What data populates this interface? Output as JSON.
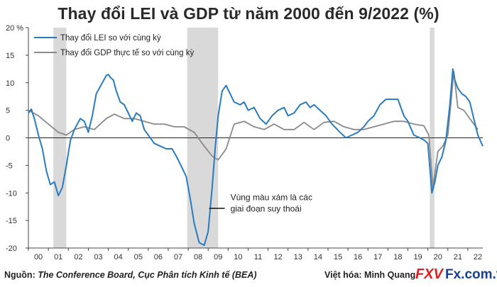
{
  "title": "Thay đổi LEI và GDP từ năm 2000 đến 9/2022 (%)",
  "chart_data": {
    "type": "line",
    "title": "Thay đổi LEI và GDP từ năm 2000 đến 9/2022 (%)",
    "ylabel_unit": "%",
    "ylim": [
      -20,
      20
    ],
    "yticks": [
      20,
      15,
      10,
      5,
      0,
      -5,
      -10,
      -15,
      -20
    ],
    "ytick_labels": [
      "20 %",
      "15",
      "10",
      "5",
      "0",
      "-5",
      "-10",
      "-15",
      "-20"
    ],
    "xlim": [
      2000.0,
      2022.75
    ],
    "xtick_labels": [
      "00",
      "01",
      "02",
      "03",
      "04",
      "05",
      "06",
      "07",
      "08",
      "09",
      "10",
      "11",
      "12",
      "13",
      "14",
      "15",
      "16",
      "17",
      "18",
      "19",
      "20",
      "21",
      "22"
    ],
    "grid": false,
    "legend_position": "top-left",
    "recessions": [
      [
        2001.25,
        2001.9
      ],
      [
        2007.95,
        2009.5
      ],
      [
        2020.1,
        2020.33
      ]
    ],
    "series": [
      {
        "name": "Thay đổi LEI so với cùng kỳ",
        "color": "#2a7bbf",
        "x": [
          2000.0,
          2000.15,
          2000.3,
          2000.5,
          2000.7,
          2000.9,
          2001.1,
          2001.3,
          2001.5,
          2001.7,
          2001.9,
          2002.1,
          2002.3,
          2002.6,
          2002.8,
          2003.0,
          2003.2,
          2003.4,
          2003.7,
          2003.9,
          2004.0,
          2004.1,
          2004.25,
          2004.4,
          2004.6,
          2004.8,
          2005.0,
          2005.2,
          2005.4,
          2005.6,
          2005.8,
          2006.0,
          2006.3,
          2006.6,
          2006.9,
          2007.2,
          2007.5,
          2007.9,
          2008.1,
          2008.3,
          2008.55,
          2008.8,
          2009.0,
          2009.2,
          2009.35,
          2009.5,
          2009.7,
          2009.9,
          2010.1,
          2010.3,
          2010.6,
          2010.8,
          2011.0,
          2011.3,
          2011.6,
          2011.9,
          2012.2,
          2012.5,
          2012.8,
          2013.0,
          2013.3,
          2013.6,
          2013.9,
          2014.1,
          2014.3,
          2014.6,
          2014.9,
          2015.2,
          2015.6,
          2015.9,
          2016.2,
          2016.5,
          2016.8,
          2017.0,
          2017.3,
          2017.6,
          2017.9,
          2018.2,
          2018.5,
          2018.8,
          2019.0,
          2019.3,
          2019.6,
          2019.85,
          2020.0,
          2020.2,
          2020.35,
          2020.5,
          2020.7,
          2020.9,
          2021.1,
          2021.25,
          2021.35,
          2021.5,
          2021.7,
          2021.9,
          2022.1,
          2022.3,
          2022.5,
          2022.75
        ],
        "y": [
          4.5,
          5.2,
          3.5,
          0.5,
          -2.0,
          -6.0,
          -8.5,
          -8.0,
          -10.5,
          -9.0,
          -5.0,
          -0.5,
          1.5,
          3.5,
          3.0,
          1.0,
          4.0,
          8.0,
          10.0,
          11.3,
          11.5,
          11.0,
          10.5,
          8.5,
          6.5,
          6.0,
          4.5,
          3.0,
          4.5,
          4.0,
          1.5,
          0.5,
          -1.0,
          -1.5,
          -2.0,
          -2.0,
          -4.0,
          -7.0,
          -11.0,
          -15.5,
          -19.0,
          -19.5,
          -17.0,
          -9.0,
          -2.0,
          4.0,
          8.5,
          9.5,
          8.0,
          6.5,
          6.0,
          6.5,
          5.0,
          5.5,
          3.5,
          2.5,
          4.0,
          5.0,
          5.5,
          4.0,
          4.5,
          6.0,
          6.5,
          5.5,
          6.0,
          5.0,
          4.0,
          2.5,
          1.0,
          0.0,
          0.5,
          1.0,
          2.0,
          3.0,
          4.0,
          6.0,
          7.0,
          7.0,
          7.0,
          4.0,
          3.0,
          0.5,
          0.0,
          -0.5,
          -1.0,
          -10.0,
          -8.0,
          -5.0,
          -3.5,
          -0.5,
          6.0,
          12.5,
          10.5,
          9.0,
          8.0,
          7.5,
          6.5,
          3.5,
          0.5,
          -1.5
        ]
      },
      {
        "name": "Thay đổi GDP thực tế so với cùng kỳ",
        "color": "#8a8a8a",
        "x": [
          2000.0,
          2000.5,
          2001.0,
          2001.5,
          2001.9,
          2002.3,
          2002.8,
          2003.3,
          2003.9,
          2004.3,
          2004.8,
          2005.3,
          2005.8,
          2006.3,
          2006.8,
          2007.3,
          2007.8,
          2008.3,
          2008.8,
          2009.2,
          2009.5,
          2009.9,
          2010.3,
          2010.8,
          2011.3,
          2011.8,
          2012.3,
          2012.8,
          2013.3,
          2013.8,
          2014.3,
          2014.8,
          2015.3,
          2015.8,
          2016.3,
          2016.8,
          2017.3,
          2017.8,
          2018.3,
          2018.8,
          2019.3,
          2019.8,
          2020.05,
          2020.25,
          2020.5,
          2020.75,
          2021.0,
          2021.3,
          2021.5,
          2021.8,
          2022.1,
          2022.5
        ],
        "y": [
          5.0,
          4.0,
          2.5,
          1.0,
          0.5,
          1.5,
          2.0,
          1.5,
          3.5,
          4.3,
          3.5,
          3.5,
          3.0,
          2.5,
          2.5,
          2.0,
          2.0,
          1.0,
          -1.5,
          -3.3,
          -4.0,
          -2.0,
          2.5,
          3.0,
          2.0,
          1.5,
          2.5,
          1.5,
          1.5,
          2.8,
          1.5,
          2.8,
          3.0,
          2.0,
          1.5,
          1.5,
          2.0,
          2.5,
          3.0,
          3.0,
          2.5,
          2.2,
          0.5,
          -9.0,
          -2.5,
          -1.5,
          0.5,
          12.0,
          5.5,
          5.0,
          3.5,
          1.5
        ]
      }
    ],
    "annotation": [
      "Vùng màu xám là các",
      "giai đoạn suy thoái"
    ]
  },
  "footer": {
    "source_label": "Nguồn:",
    "source_text": "The Conference Board, Cục Phân tích Kinh tế (BEA)",
    "credit": "Việt hóa: Minh Quang"
  },
  "logo": {
    "mark": "FXV",
    "site": "Fx.com.vn"
  }
}
